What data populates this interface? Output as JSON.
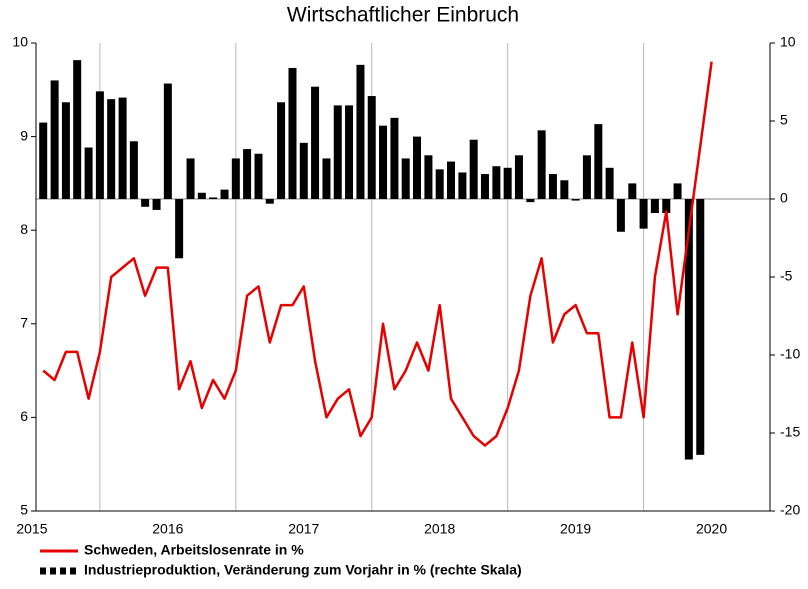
{
  "chart_data": {
    "type": "combo",
    "title": "Wirtschaftlicher Einbruch",
    "x": [
      2015.583,
      2015.667,
      2015.75,
      2015.833,
      2015.917,
      2016,
      2016.083,
      2016.167,
      2016.25,
      2016.333,
      2016.417,
      2016.5,
      2016.583,
      2016.667,
      2016.75,
      2016.833,
      2016.917,
      2017,
      2017.083,
      2017.167,
      2017.25,
      2017.333,
      2017.417,
      2017.5,
      2017.583,
      2017.667,
      2017.75,
      2017.833,
      2017.917,
      2018,
      2018.083,
      2018.167,
      2018.25,
      2018.333,
      2018.417,
      2018.5,
      2018.583,
      2018.667,
      2018.75,
      2018.833,
      2018.917,
      2019,
      2019.083,
      2019.167,
      2019.25,
      2019.333,
      2019.417,
      2019.5,
      2019.583,
      2019.667,
      2019.75,
      2019.833,
      2019.917,
      2020,
      2020.083,
      2020.167,
      2020.25,
      2020.333,
      2020.417,
      2020.5
    ],
    "xlim": [
      2015.53,
      2020.93
    ],
    "xticks": [
      {
        "value": 2015.5,
        "label": "2015"
      },
      {
        "value": 2016.5,
        "label": "2016"
      },
      {
        "value": 2017.5,
        "label": "2017"
      },
      {
        "value": 2018.5,
        "label": "2018"
      },
      {
        "value": 2019.5,
        "label": "2019"
      },
      {
        "value": 2020.5,
        "label": "2020"
      }
    ],
    "xgrid": [
      2016,
      2017,
      2018,
      2019,
      2020
    ],
    "ylim": [
      5,
      10
    ],
    "yticks": [
      5,
      6,
      7,
      8,
      9,
      10
    ],
    "y2lim": [
      -20,
      10
    ],
    "y2ticks": [
      -20,
      -15,
      -10,
      -5,
      0,
      5,
      10
    ],
    "series": [
      {
        "name": "Schweden, Arbeitslosenrate in %",
        "type": "line",
        "color": "#e60000",
        "values": [
          6.5,
          6.4,
          6.7,
          6.7,
          6.2,
          6.7,
          7.5,
          7.6,
          7.7,
          7.3,
          7.6,
          7.6,
          6.3,
          6.6,
          6.1,
          6.4,
          6.2,
          6.5,
          7.3,
          7.4,
          6.8,
          7.2,
          7.2,
          7.4,
          6.6,
          6.0,
          6.2,
          6.3,
          5.8,
          6.0,
          7.0,
          6.3,
          6.5,
          6.8,
          6.5,
          7.2,
          6.2,
          6.0,
          5.8,
          5.7,
          5.8,
          6.1,
          6.5,
          7.3,
          7.7,
          6.8,
          7.1,
          7.2,
          6.9,
          6.9,
          6.0,
          6.0,
          6.8,
          6.0,
          7.5,
          8.2,
          7.1,
          8.0,
          8.9,
          9.8
        ]
      },
      {
        "name": "Industrieproduktion, Veränderung zum Vorjahr in % (rechte Skala)",
        "type": "bar",
        "axis": "y2",
        "color": "#000000",
        "values": [
          4.9,
          7.6,
          6.2,
          8.9,
          3.3,
          6.9,
          6.4,
          6.5,
          3.7,
          -0.5,
          -0.7,
          7.4,
          -3.8,
          2.6,
          0.4,
          0.1,
          0.6,
          2.6,
          3.2,
          2.9,
          -0.3,
          6.2,
          8.4,
          3.6,
          7.2,
          2.6,
          6.0,
          6.0,
          8.6,
          6.6,
          4.7,
          5.2,
          2.6,
          4.0,
          2.8,
          1.9,
          2.4,
          1.7,
          3.8,
          1.6,
          2.1,
          2.0,
          2.8,
          -0.2,
          4.4,
          1.6,
          1.2,
          -0.1,
          2.8,
          4.8,
          2.0,
          -2.1,
          1.0,
          -1.9,
          -0.9,
          -0.9,
          1.0,
          -16.7,
          -16.4,
          null
        ]
      }
    ]
  }
}
